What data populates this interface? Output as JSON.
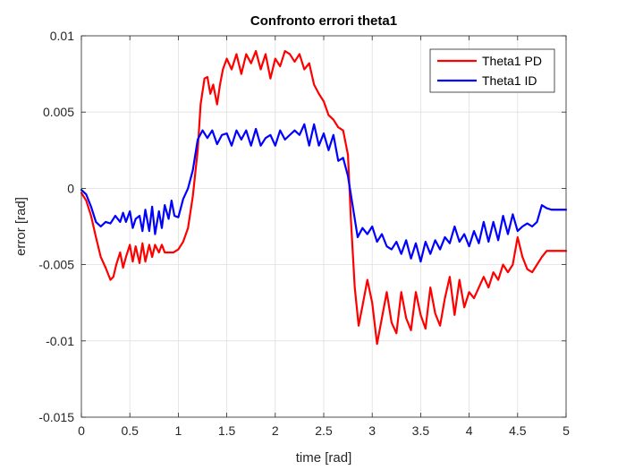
{
  "chart_data": {
    "type": "line",
    "title": "Confronto errori theta1",
    "xlabel": "time [rad]",
    "ylabel": "error [rad]",
    "xlim": [
      0,
      5
    ],
    "ylim": [
      -0.015,
      0.01
    ],
    "xticks": [
      0,
      0.5,
      1,
      1.5,
      2,
      2.5,
      3,
      3.5,
      4,
      4.5,
      5
    ],
    "xtick_labels": [
      "0",
      "0.5",
      "1",
      "1.5",
      "2",
      "2.5",
      "3",
      "3.5",
      "4",
      "4.5",
      "5"
    ],
    "yticks": [
      -0.015,
      -0.01,
      -0.005,
      0,
      0.005,
      0.01
    ],
    "ytick_labels": [
      "-0.015",
      "-0.01",
      "-0.005",
      "0",
      "0.005",
      "0.01"
    ],
    "grid": true,
    "legend_position": "top-right",
    "series": [
      {
        "name": "Theta1 PD",
        "color": "#ff0000",
        "x": [
          0,
          0.05,
          0.1,
          0.15,
          0.2,
          0.25,
          0.3,
          0.33,
          0.36,
          0.4,
          0.43,
          0.46,
          0.5,
          0.53,
          0.56,
          0.6,
          0.63,
          0.66,
          0.7,
          0.73,
          0.76,
          0.8,
          0.83,
          0.86,
          0.9,
          0.95,
          1.0,
          1.05,
          1.1,
          1.15,
          1.2,
          1.23,
          1.27,
          1.3,
          1.33,
          1.36,
          1.4,
          1.43,
          1.46,
          1.5,
          1.55,
          1.6,
          1.65,
          1.7,
          1.75,
          1.8,
          1.85,
          1.9,
          1.95,
          2.0,
          2.05,
          2.1,
          2.15,
          2.2,
          2.25,
          2.3,
          2.35,
          2.4,
          2.45,
          2.5,
          2.55,
          2.6,
          2.65,
          2.7,
          2.75,
          2.78,
          2.82,
          2.86,
          2.9,
          2.95,
          3.0,
          3.05,
          3.1,
          3.15,
          3.2,
          3.25,
          3.3,
          3.35,
          3.4,
          3.45,
          3.5,
          3.55,
          3.6,
          3.65,
          3.7,
          3.75,
          3.8,
          3.85,
          3.9,
          3.95,
          4.0,
          4.05,
          4.1,
          4.15,
          4.2,
          4.25,
          4.3,
          4.35,
          4.4,
          4.45,
          4.5,
          4.55,
          4.6,
          4.65,
          4.7,
          4.75,
          4.8,
          5.0
        ],
        "y": [
          -0.0003,
          -0.0008,
          -0.0018,
          -0.0032,
          -0.0045,
          -0.0052,
          -0.006,
          -0.0058,
          -0.005,
          -0.0042,
          -0.0052,
          -0.0045,
          -0.0037,
          -0.0048,
          -0.0038,
          -0.0049,
          -0.0036,
          -0.0048,
          -0.0037,
          -0.0045,
          -0.0037,
          -0.0042,
          -0.0037,
          -0.0042,
          -0.0042,
          -0.0042,
          -0.004,
          -0.0035,
          -0.0026,
          -0.0005,
          0.0025,
          0.0055,
          0.0072,
          0.0073,
          0.0062,
          0.0068,
          0.0055,
          0.0068,
          0.0078,
          0.0085,
          0.0078,
          0.0088,
          0.0075,
          0.0088,
          0.0082,
          0.009,
          0.0078,
          0.0088,
          0.0072,
          0.0085,
          0.008,
          0.009,
          0.0088,
          0.0083,
          0.0088,
          0.0078,
          0.0082,
          0.0068,
          0.0062,
          0.0057,
          0.0048,
          0.0045,
          0.004,
          0.0038,
          0.0022,
          -0.002,
          -0.0065,
          -0.009,
          -0.0077,
          -0.006,
          -0.0075,
          -0.0102,
          -0.0085,
          -0.0068,
          -0.0088,
          -0.0095,
          -0.0068,
          -0.0085,
          -0.0093,
          -0.0068,
          -0.0083,
          -0.0092,
          -0.0065,
          -0.0082,
          -0.009,
          -0.0072,
          -0.0058,
          -0.0083,
          -0.006,
          -0.0078,
          -0.0068,
          -0.0072,
          -0.0065,
          -0.0058,
          -0.0065,
          -0.0055,
          -0.006,
          -0.005,
          -0.0055,
          -0.005,
          -0.0032,
          -0.0045,
          -0.0053,
          -0.0055,
          -0.005,
          -0.0045,
          -0.0041,
          -0.0041
        ]
      },
      {
        "name": "Theta1 ID",
        "color": "#0000ff",
        "x": [
          0,
          0.05,
          0.1,
          0.15,
          0.2,
          0.25,
          0.3,
          0.35,
          0.4,
          0.43,
          0.46,
          0.5,
          0.53,
          0.56,
          0.6,
          0.63,
          0.66,
          0.7,
          0.73,
          0.76,
          0.8,
          0.83,
          0.86,
          0.9,
          0.93,
          0.96,
          1.0,
          1.05,
          1.1,
          1.15,
          1.2,
          1.25,
          1.3,
          1.35,
          1.4,
          1.45,
          1.5,
          1.55,
          1.6,
          1.65,
          1.7,
          1.75,
          1.8,
          1.85,
          1.9,
          1.95,
          2.0,
          2.05,
          2.1,
          2.15,
          2.2,
          2.25,
          2.3,
          2.35,
          2.4,
          2.45,
          2.5,
          2.55,
          2.6,
          2.65,
          2.7,
          2.75,
          2.8,
          2.85,
          2.9,
          2.95,
          3.0,
          3.05,
          3.1,
          3.15,
          3.2,
          3.25,
          3.3,
          3.35,
          3.4,
          3.45,
          3.5,
          3.55,
          3.6,
          3.65,
          3.7,
          3.75,
          3.8,
          3.85,
          3.9,
          3.95,
          4.0,
          4.05,
          4.1,
          4.15,
          4.2,
          4.25,
          4.3,
          4.35,
          4.4,
          4.45,
          4.5,
          4.55,
          4.6,
          4.65,
          4.7,
          4.75,
          4.8,
          4.85,
          5.0
        ],
        "y": [
          -0.0001,
          -0.0004,
          -0.0012,
          -0.0022,
          -0.0025,
          -0.0022,
          -0.0023,
          -0.0018,
          -0.0022,
          -0.0016,
          -0.0022,
          -0.0015,
          -0.0026,
          -0.002,
          -0.0018,
          -0.0028,
          -0.0014,
          -0.0028,
          -0.0012,
          -0.003,
          -0.0015,
          -0.0026,
          -0.0011,
          -0.002,
          -0.0008,
          -0.0018,
          -0.0019,
          -0.0007,
          0.0,
          0.0012,
          0.0032,
          0.0038,
          0.0033,
          0.0038,
          0.0029,
          0.0035,
          0.0036,
          0.0028,
          0.0038,
          0.0032,
          0.0038,
          0.0028,
          0.0039,
          0.0028,
          0.0033,
          0.0035,
          0.0028,
          0.0038,
          0.0032,
          0.0035,
          0.0038,
          0.0035,
          0.0042,
          0.0028,
          0.0042,
          0.0028,
          0.0036,
          0.0025,
          0.0035,
          0.0018,
          0.002,
          0.0008,
          -0.0012,
          -0.0032,
          -0.0026,
          -0.003,
          -0.0025,
          -0.0035,
          -0.003,
          -0.0038,
          -0.004,
          -0.0035,
          -0.0043,
          -0.0034,
          -0.0046,
          -0.0036,
          -0.0048,
          -0.0035,
          -0.0043,
          -0.0034,
          -0.004,
          -0.0032,
          -0.0036,
          -0.0025,
          -0.0035,
          -0.003,
          -0.0038,
          -0.0028,
          -0.0036,
          -0.0022,
          -0.0035,
          -0.0022,
          -0.0034,
          -0.0018,
          -0.003,
          -0.0017,
          -0.0028,
          -0.0025,
          -0.0023,
          -0.0025,
          -0.0022,
          -0.0011,
          -0.0013,
          -0.0014,
          -0.0014
        ]
      }
    ]
  }
}
